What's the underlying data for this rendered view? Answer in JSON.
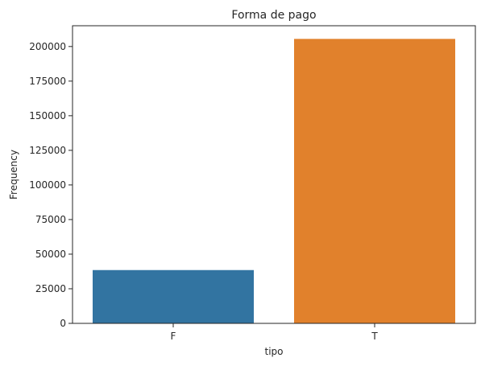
{
  "chart_data": {
    "type": "bar",
    "title": "Forma de pago",
    "xlabel": "tipo",
    "ylabel": "Frequency",
    "categories": [
      "F",
      "T"
    ],
    "values": [
      38500,
      205500
    ],
    "ylim": [
      0,
      215000
    ],
    "yticks": [
      0,
      25000,
      50000,
      75000,
      100000,
      125000,
      150000,
      175000,
      200000
    ],
    "colors": [
      "#3274a1",
      "#e1812c"
    ],
    "grid": false,
    "legend": "none"
  }
}
